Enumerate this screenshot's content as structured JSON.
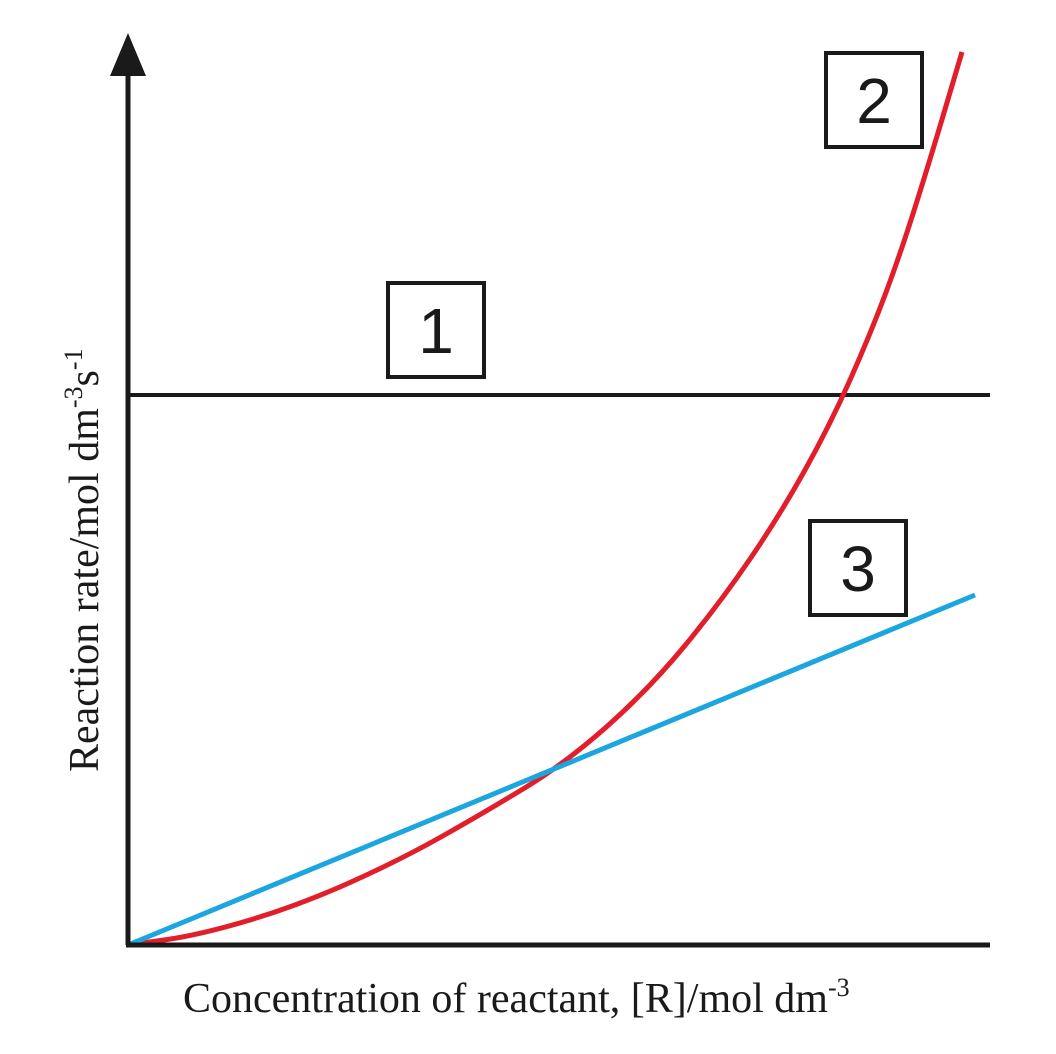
{
  "chart_data": {
    "type": "line",
    "title": "",
    "xlabel": {
      "main": "Concentration of reactant, [R]/mol dm",
      "sup": "-3"
    },
    "ylabel": {
      "main": "Reaction rate/mol dm",
      "sup1": "-3",
      "mid": "s",
      "sup2": "-1"
    },
    "grid": false,
    "axis_ticks": false,
    "legend": "none",
    "series": [
      {
        "label": "1",
        "order": 0,
        "color": "#1a1a1a",
        "description": "constant rate, independent of [R]"
      },
      {
        "label": "2",
        "order": 2,
        "color": "#e21e2b",
        "description": "rate increases with square of [R]"
      },
      {
        "label": "3",
        "order": 1,
        "color": "#1ba6e0",
        "description": "rate directly proportional to [R]"
      }
    ],
    "x_range": [
      0,
      1
    ],
    "y_range": [
      0,
      1
    ],
    "relations": {
      "zero_order_rate": 0.58,
      "first_order_slope": 0.37,
      "second_order_coefficient": 0.72
    }
  }
}
